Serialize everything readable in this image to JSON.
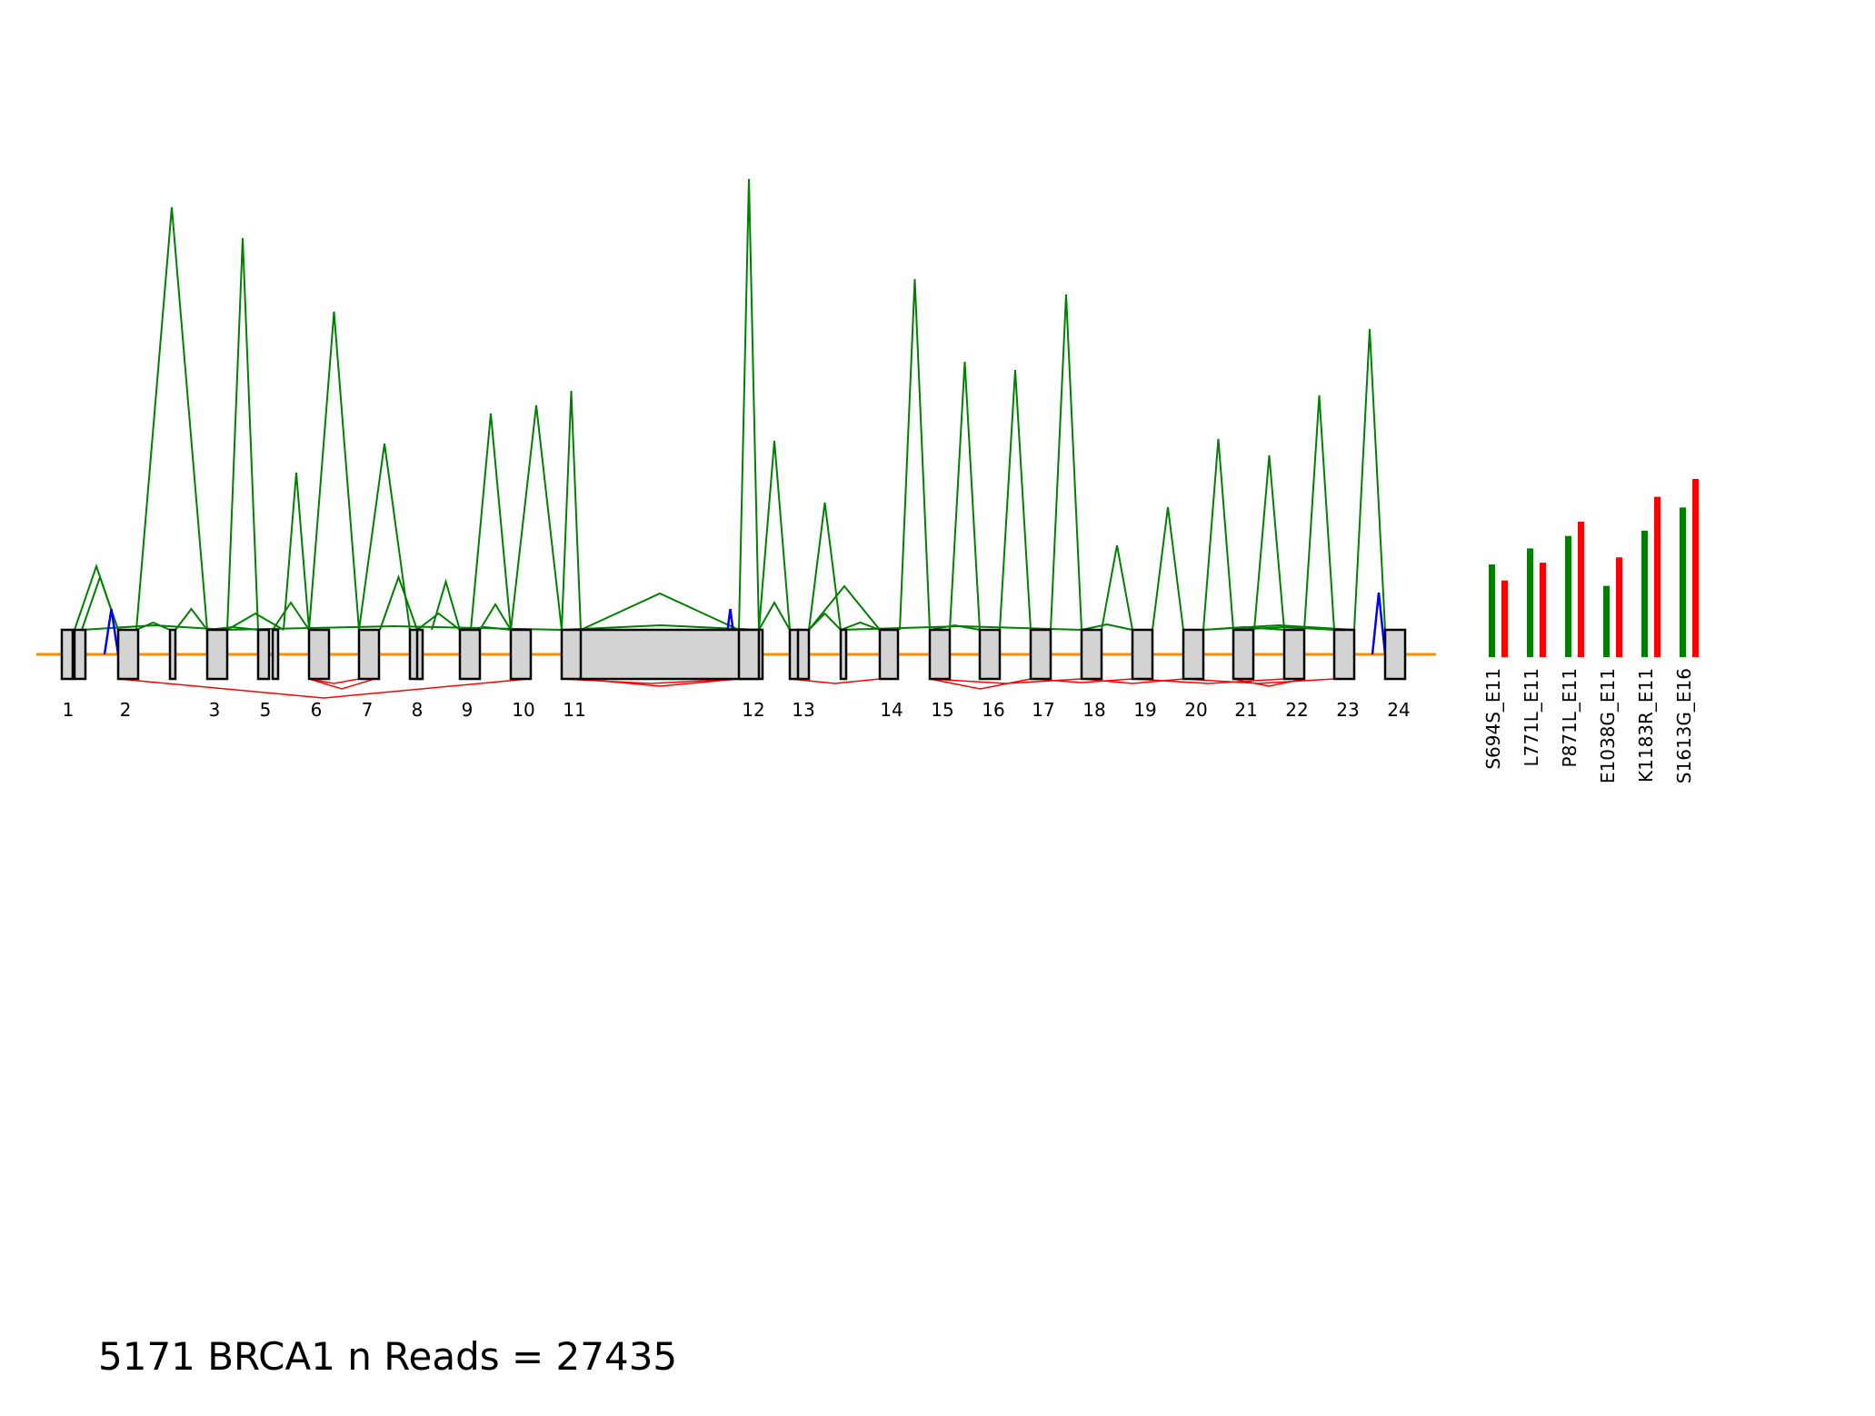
{
  "caption": "5171 BRCA1 n Reads = 27435",
  "colors": {
    "backbone": "#ff8c00",
    "exon_fill": "#d3d3d3",
    "exon_stroke": "#000000",
    "junction_up": "#008000",
    "junction_down": "#ff0000",
    "novel": "#0000ff",
    "allele_ref": "#008000",
    "allele_alt": "#ff0000"
  },
  "exon_labels": [
    "1",
    "2",
    "3",
    "5",
    "6",
    "7",
    "8",
    "9",
    "10",
    "11",
    "12",
    "13",
    "14",
    "15",
    "16",
    "17",
    "18",
    "19",
    "20",
    "21",
    "22",
    "23",
    "24"
  ],
  "variants": [
    {
      "label": "S694S_E11",
      "ref": 0.52,
      "alt": 0.43
    },
    {
      "label": "L771L_E11",
      "ref": 0.61,
      "alt": 0.53
    },
    {
      "label": "P871L_E11",
      "ref": 0.68,
      "alt": 0.76
    },
    {
      "label": "E1038G_E11",
      "ref": 0.4,
      "alt": 0.56
    },
    {
      "label": "K1183R_E11",
      "ref": 0.71,
      "alt": 0.9
    },
    {
      "label": "S1613G_E16",
      "ref": 0.84,
      "alt": 1.0
    }
  ]
}
